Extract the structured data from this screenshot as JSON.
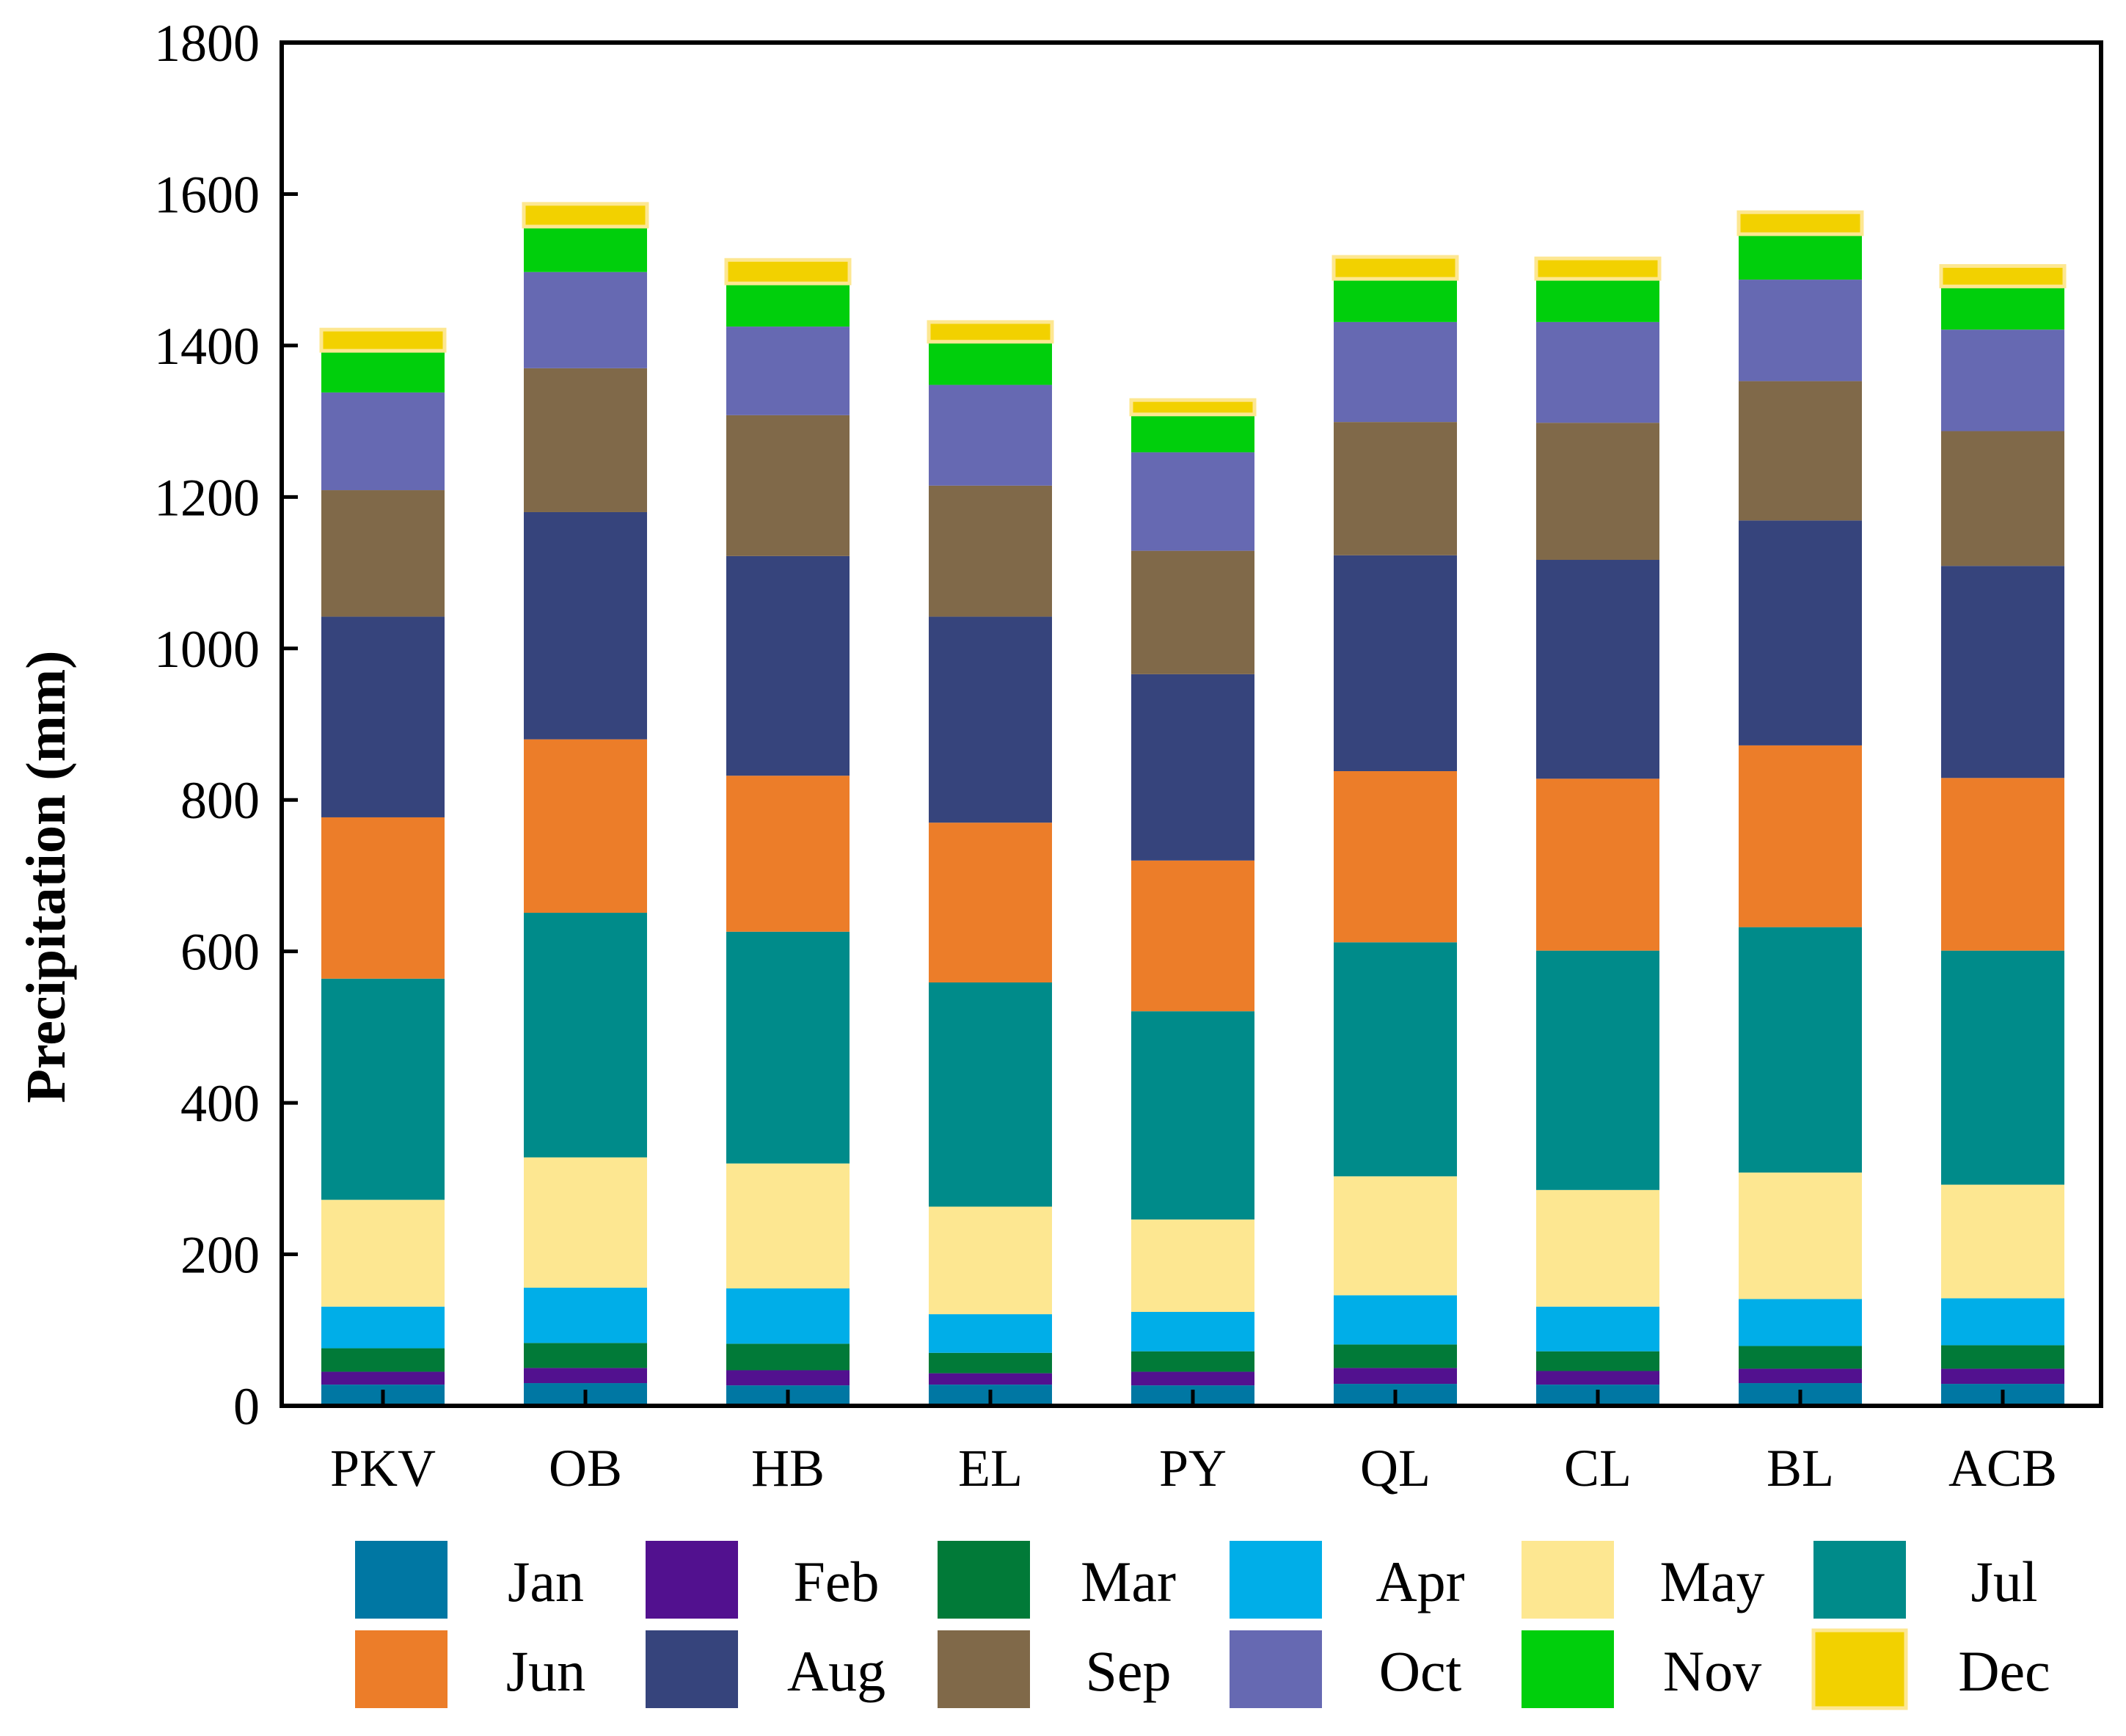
{
  "chart_data": {
    "type": "bar",
    "stacked": true,
    "title": "",
    "xlabel": "",
    "ylabel": "Precipitation (mm)",
    "ylim": [
      0,
      1800
    ],
    "yticks": [
      0,
      200,
      400,
      600,
      800,
      1000,
      1200,
      1400,
      1600,
      1800
    ],
    "grid": false,
    "legend_position": "bottom",
    "categories": [
      "PKV",
      "OB",
      "HB",
      "EL",
      "PY",
      "QL",
      "CL",
      "BL",
      "ACB"
    ],
    "series": [
      {
        "name": "Jan",
        "color": "#0077A3",
        "values": [
          28,
          30,
          27,
          28,
          27,
          29,
          28,
          30,
          29
        ]
      },
      {
        "name": "Feb",
        "color": "#52118F",
        "values": [
          17,
          20,
          20,
          15,
          18,
          21,
          18,
          19,
          20
        ]
      },
      {
        "name": "Mar",
        "color": "#017A38",
        "values": [
          31,
          33,
          35,
          27,
          27,
          31,
          26,
          30,
          31
        ]
      },
      {
        "name": "Apr",
        "color": "#00AEE8",
        "values": [
          55,
          73,
          73,
          51,
          52,
          65,
          59,
          62,
          62
        ]
      },
      {
        "name": "May",
        "color": "#FDE791",
        "values": [
          141,
          172,
          165,
          142,
          122,
          157,
          154,
          167,
          150
        ]
      },
      {
        "name": "Jul",
        "color": "#008B8A",
        "values": [
          292,
          323,
          306,
          296,
          275,
          309,
          316,
          324,
          309
        ]
      },
      {
        "name": "Jun",
        "color": "#EC7D29",
        "values": [
          213,
          229,
          206,
          211,
          199,
          226,
          227,
          240,
          228
        ]
      },
      {
        "name": "Aug",
        "color": "#36447C",
        "values": [
          265,
          300,
          290,
          272,
          246,
          285,
          289,
          297,
          280
        ]
      },
      {
        "name": "Sep",
        "color": "#806949",
        "values": [
          167,
          190,
          186,
          173,
          163,
          176,
          181,
          184,
          178
        ]
      },
      {
        "name": "Oct",
        "color": "#6669B2",
        "values": [
          129,
          127,
          117,
          133,
          130,
          132,
          133,
          134,
          134
        ]
      },
      {
        "name": "Nov",
        "color": "#00CF0C",
        "values": [
          55,
          60,
          57,
          57,
          50,
          57,
          57,
          60,
          57
        ]
      },
      {
        "name": "Dec",
        "color": "#F2D100",
        "values": [
          28,
          30,
          31,
          26,
          19,
          29,
          27,
          29,
          27
        ]
      }
    ],
    "legend_order": [
      "Jan",
      "Feb",
      "Mar",
      "Apr",
      "May",
      "Jul",
      "Jun",
      "Aug",
      "Sep",
      "Oct",
      "Nov",
      "Dec"
    ],
    "dec_outline_color": "#FDE791"
  }
}
